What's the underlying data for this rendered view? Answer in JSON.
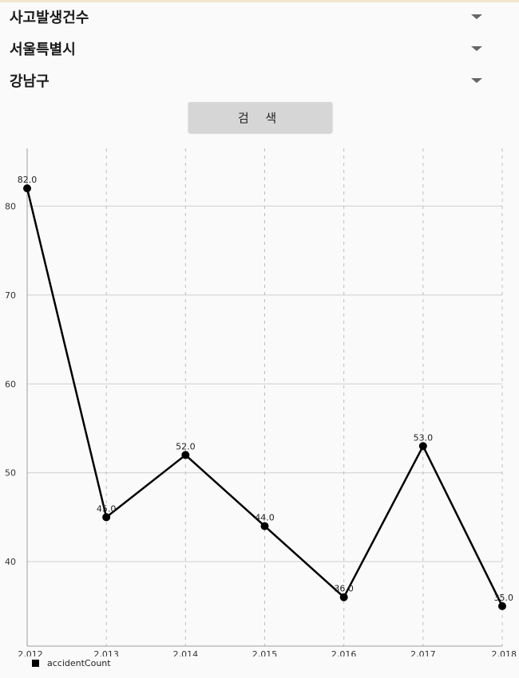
{
  "filters": {
    "category": {
      "selected": "사고발생건수"
    },
    "city": {
      "selected": "서울특별시"
    },
    "district": {
      "selected": "강남구"
    }
  },
  "search_button": {
    "label": "검 색"
  },
  "chart_data": {
    "type": "line",
    "categories": [
      "2,012",
      "2,013",
      "2,014",
      "2,015",
      "2,016",
      "2,017",
      "2,018"
    ],
    "series": [
      {
        "name": "accidentCount",
        "values": [
          82.0,
          45.0,
          52.0,
          44.0,
          36.0,
          53.0,
          35.0
        ],
        "data_labels": [
          "82.0",
          "45.0",
          "52.0",
          "44.0",
          "36.0",
          "53.0",
          "35.0"
        ],
        "color": "#000000"
      }
    ],
    "yticks": [
      "40",
      "50",
      "60",
      "70",
      "80"
    ],
    "ytick_values": [
      40,
      50,
      60,
      70,
      80
    ],
    "ylim": [
      30.5,
      86.5
    ],
    "grid": {
      "horizontal": true,
      "vertical_dashed": true
    },
    "legend_position": "bottom-left",
    "title": "",
    "xlabel": "",
    "ylabel": ""
  }
}
